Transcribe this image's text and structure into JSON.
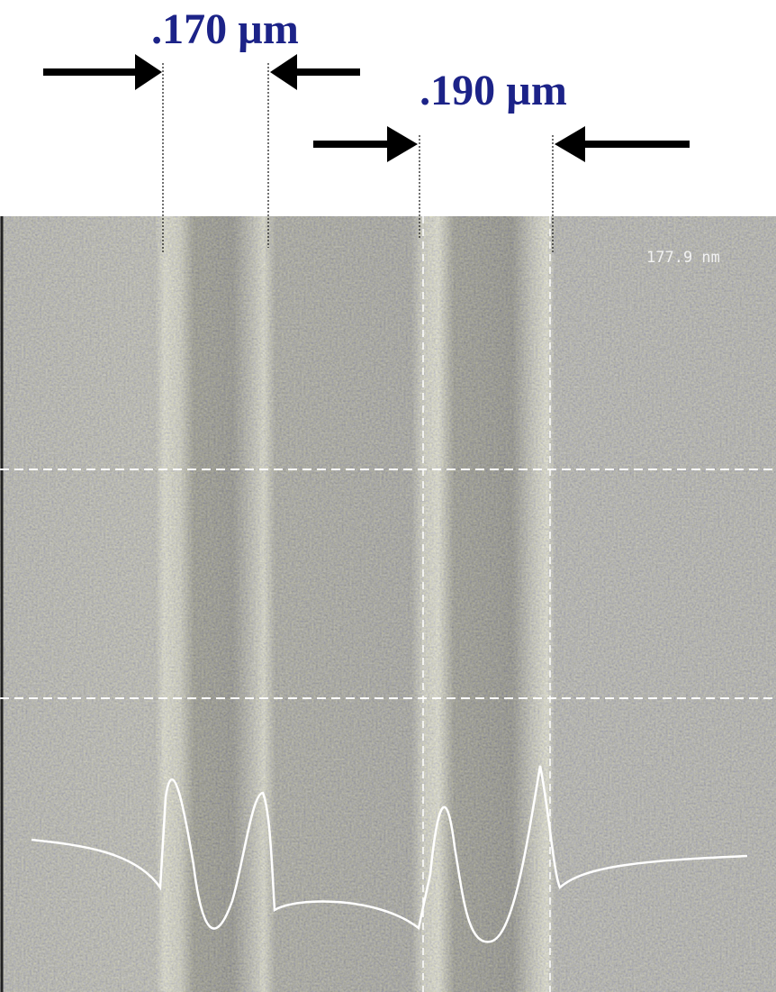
{
  "annotations": [
    {
      "label": ".170 µm"
    },
    {
      "label": ".190 µm"
    }
  ],
  "image": {
    "overlay_label": "177.9 nm"
  }
}
